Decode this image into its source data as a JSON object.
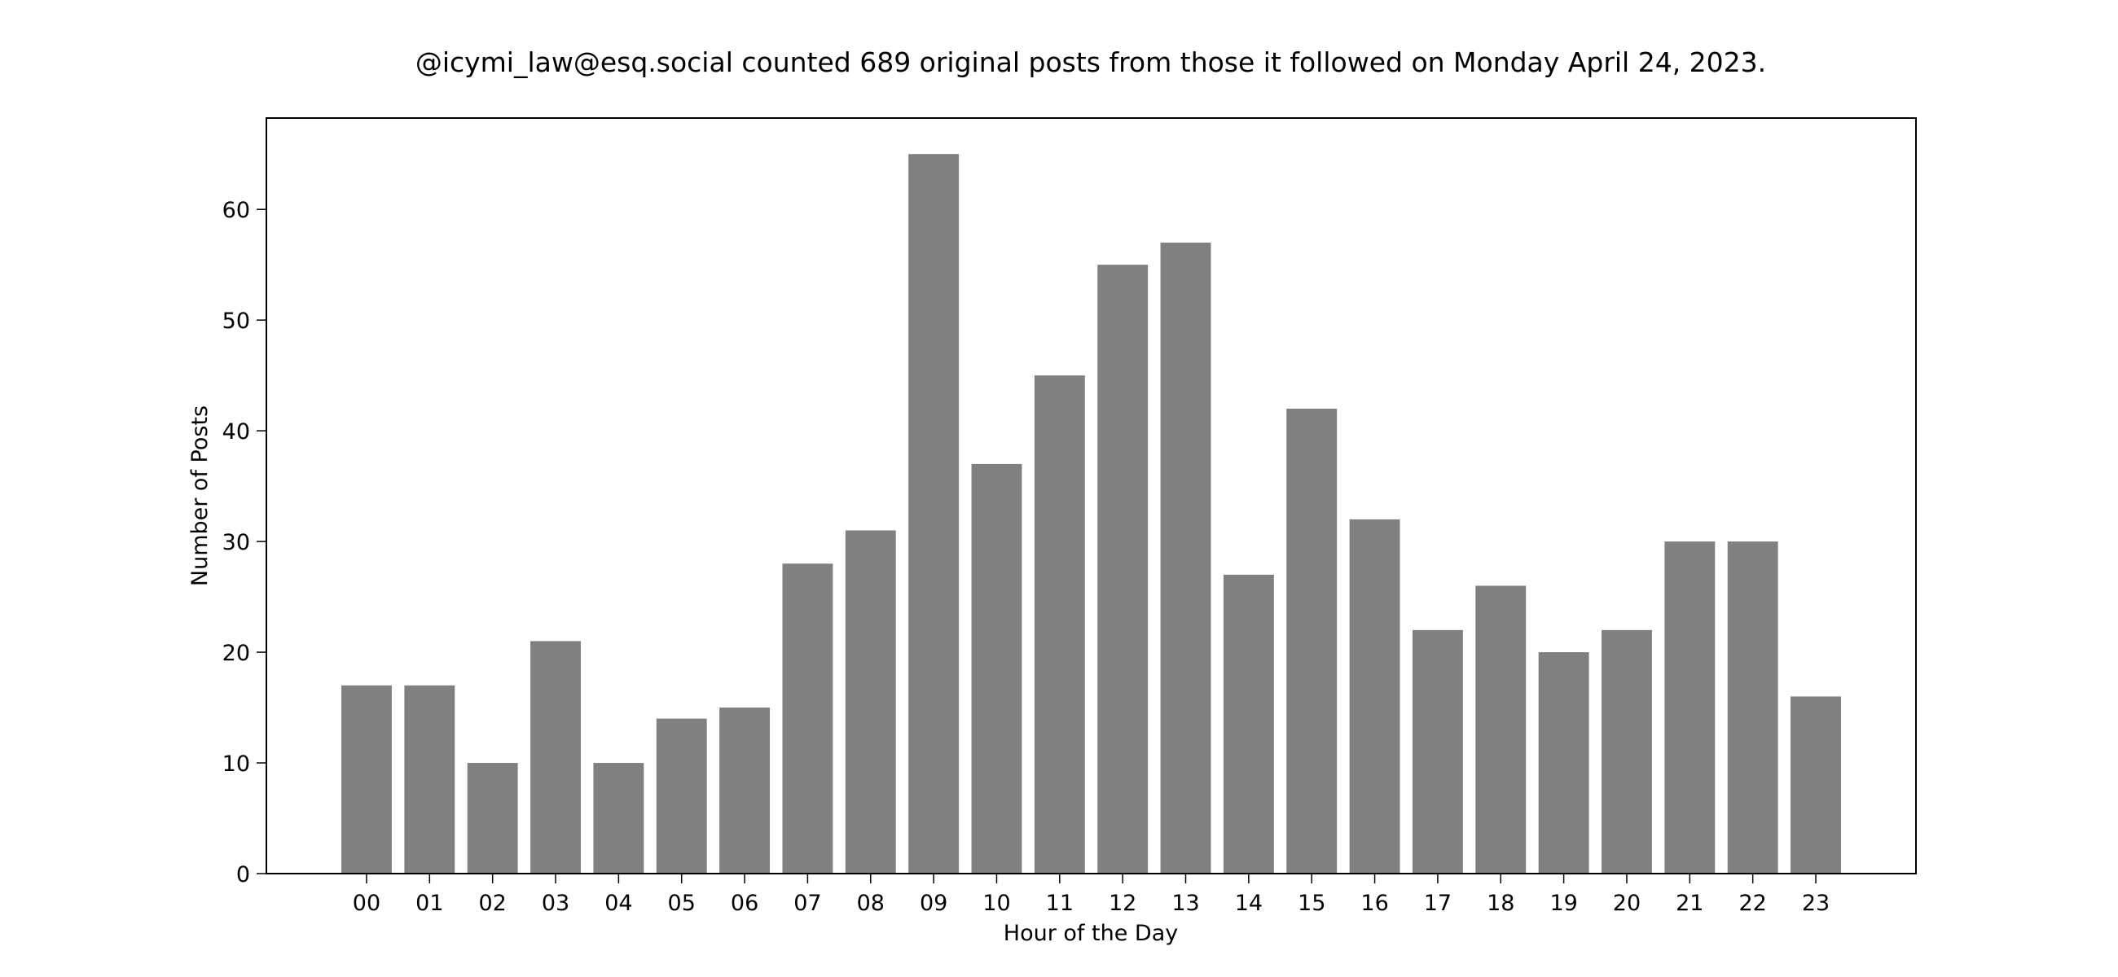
{
  "chart_data": {
    "type": "bar",
    "title": "@icymi_law@esq.social counted 689 original posts from those it followed on Monday April 24, 2023.",
    "xlabel": "Hour of the Day",
    "ylabel": "Number of Posts",
    "categories": [
      "00",
      "01",
      "02",
      "03",
      "04",
      "05",
      "06",
      "07",
      "08",
      "09",
      "10",
      "11",
      "12",
      "13",
      "14",
      "15",
      "16",
      "17",
      "18",
      "19",
      "20",
      "21",
      "22",
      "23"
    ],
    "values": [
      17,
      17,
      10,
      21,
      10,
      14,
      15,
      28,
      31,
      65,
      37,
      45,
      55,
      57,
      27,
      42,
      32,
      22,
      26,
      20,
      22,
      30,
      30,
      16
    ],
    "ylim": [
      0,
      68.25
    ],
    "xlim": [
      -1.59,
      24.59
    ],
    "yticks": [
      0,
      10,
      20,
      30,
      40,
      50,
      60
    ],
    "grid": false,
    "bar_color": "#808080"
  }
}
